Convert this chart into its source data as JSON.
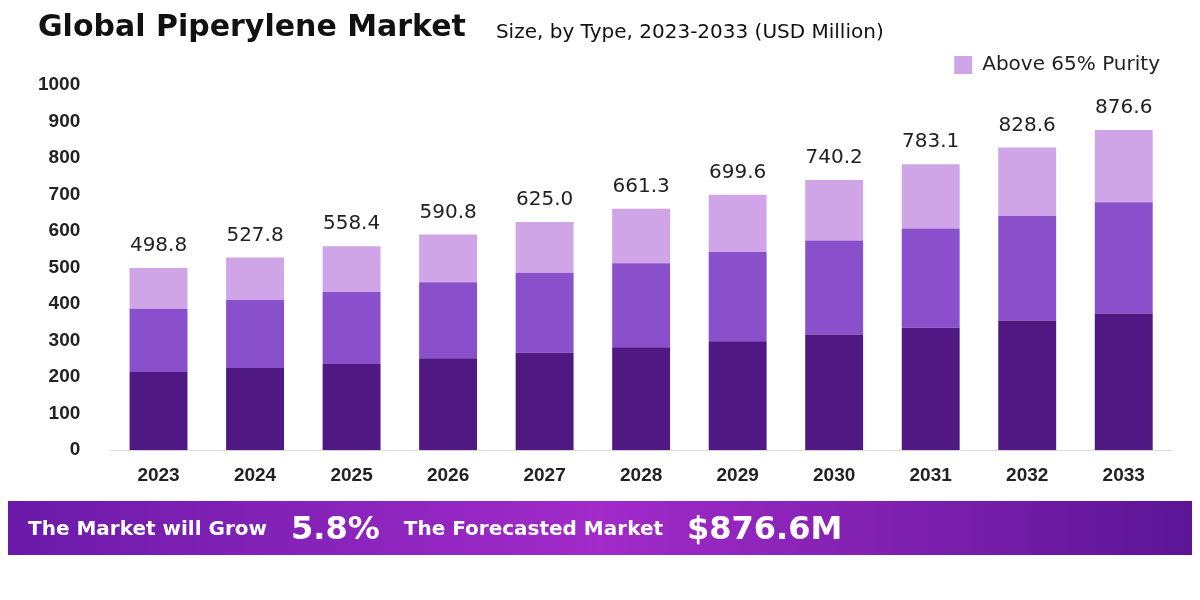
{
  "chart_data": {
    "type": "bar",
    "title": "Global Piperylene Market",
    "subtitle": "Size, by Type, 2023-2033 (USD Million)",
    "categories": [
      "2023",
      "2024",
      "2025",
      "2026",
      "2027",
      "2028",
      "2029",
      "2030",
      "2031",
      "2032",
      "2033"
    ],
    "series": [
      {
        "color": "#4f1882",
        "values": [
          214,
          225,
          236,
          252,
          267,
          282,
          298,
          317,
          335,
          355,
          374
        ]
      },
      {
        "color": "#8a4fcb",
        "values": [
          173,
          186,
          197,
          208,
          219,
          230,
          245,
          257,
          272,
          286,
          305
        ]
      },
      {
        "name": "Above 65% Purity",
        "color": "#d0a5e8",
        "values": [
          111.8,
          116.8,
          125.4,
          130.8,
          139,
          149.3,
          156.6,
          166.2,
          176.1,
          187.6,
          197.6
        ]
      }
    ],
    "stacked": true,
    "totals": [
      "498.8",
      "527.8",
      "558.4",
      "590.8",
      "625.0",
      "661.3",
      "699.6",
      "740.2",
      "783.1",
      "828.6",
      "876.6"
    ],
    "ylim": [
      0,
      1000
    ],
    "yticks": [
      0,
      100,
      200,
      300,
      400,
      500,
      600,
      700,
      800,
      900,
      1000
    ],
    "grid": false,
    "legend": "top right",
    "annotations": [
      "The Market will Grow",
      "5.8%",
      "The Forecasted Market",
      "$876.6M"
    ]
  }
}
